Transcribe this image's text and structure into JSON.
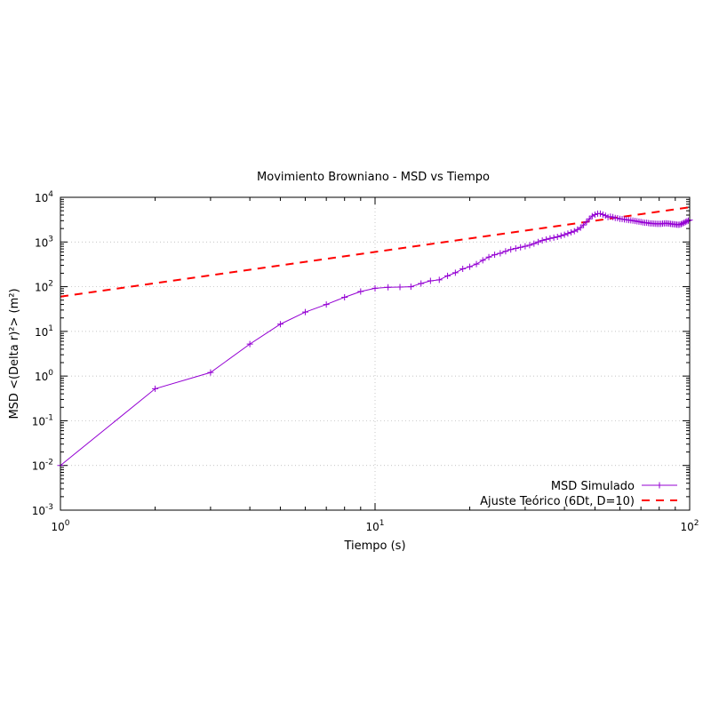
{
  "chart_data": {
    "type": "line",
    "title": "Movimiento Browniano - MSD vs Tiempo",
    "xlabel": "Tiempo (s)",
    "ylabel": "MSD <(Delta r)²> (m²)",
    "x_scale": "log",
    "y_scale": "log",
    "xlim": [
      1,
      100
    ],
    "ylim": [
      0.001,
      10000
    ],
    "x_ticks": [
      {
        "value": 1,
        "base": "10",
        "exp": "0"
      },
      {
        "value": 10,
        "base": "10",
        "exp": "1"
      },
      {
        "value": 100,
        "base": "10",
        "exp": "2"
      }
    ],
    "y_ticks": [
      {
        "value": 0.001,
        "base": "10",
        "exp": "-3"
      },
      {
        "value": 0.01,
        "base": "10",
        "exp": "-2"
      },
      {
        "value": 0.1,
        "base": "10",
        "exp": "-1"
      },
      {
        "value": 1,
        "base": "10",
        "exp": "0"
      },
      {
        "value": 10,
        "base": "10",
        "exp": "1"
      },
      {
        "value": 100,
        "base": "10",
        "exp": "2"
      },
      {
        "value": 1000,
        "base": "10",
        "exp": "3"
      },
      {
        "value": 10000,
        "base": "10",
        "exp": "4"
      }
    ],
    "grid": true,
    "legend_position": "bottom-right",
    "series": [
      {
        "name": "MSD Simulado",
        "color": "#9400d3",
        "style": "line-with-plus-markers",
        "x": [
          1,
          2,
          3,
          4,
          5,
          6,
          7,
          8,
          9,
          10,
          11,
          12,
          13,
          14,
          15,
          16,
          17,
          18,
          19,
          20,
          21,
          22,
          23,
          24,
          25,
          26,
          27,
          28,
          29,
          30,
          31,
          32,
          33,
          34,
          35,
          36,
          37,
          38,
          39,
          40,
          41,
          42,
          43,
          44,
          45,
          46,
          47,
          48,
          49,
          50,
          51,
          52,
          53,
          54,
          55,
          56,
          57,
          58,
          59,
          60,
          61,
          62,
          63,
          64,
          65,
          66,
          67,
          68,
          69,
          70,
          71,
          72,
          73,
          74,
          75,
          76,
          77,
          78,
          79,
          80,
          81,
          82,
          83,
          84,
          85,
          86,
          87,
          88,
          89,
          90,
          91,
          92,
          93,
          94,
          95,
          96,
          97,
          98,
          99,
          100
        ],
        "y": [
          0.01,
          0.52,
          1.2,
          5.2,
          14.5,
          27,
          40,
          58,
          78,
          92,
          97,
          98,
          100,
          118,
          135,
          142,
          175,
          205,
          250,
          280,
          320,
          390,
          460,
          520,
          560,
          620,
          680,
          720,
          760,
          800,
          850,
          920,
          1000,
          1080,
          1140,
          1200,
          1250,
          1300,
          1380,
          1450,
          1550,
          1650,
          1750,
          1900,
          2100,
          2400,
          2800,
          3300,
          3800,
          4100,
          4300,
          4300,
          4100,
          3900,
          3600,
          3700,
          3600,
          3450,
          3400,
          3300,
          3250,
          3200,
          3150,
          3100,
          3050,
          3000,
          2950,
          2900,
          2850,
          2800,
          2750,
          2700,
          2700,
          2650,
          2600,
          2600,
          2580,
          2560,
          2550,
          2540,
          2550,
          2570,
          2600,
          2620,
          2600,
          2580,
          2550,
          2520,
          2500,
          2480,
          2450,
          2430,
          2450,
          2520,
          2600,
          2700,
          2800,
          2900,
          3000,
          3100
        ]
      },
      {
        "name": "Ajuste Teórico (6Dt, D=10)",
        "color": "#ff0000",
        "style": "dashed",
        "x": [
          1,
          100
        ],
        "y": [
          60,
          6000
        ]
      }
    ]
  }
}
